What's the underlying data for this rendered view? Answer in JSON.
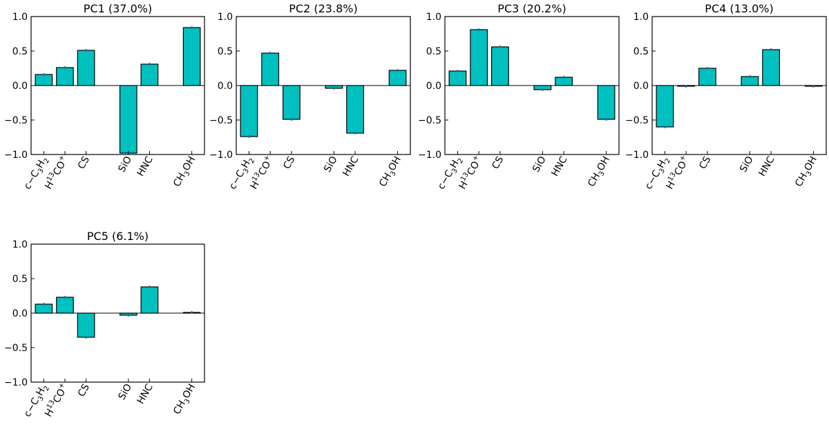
{
  "chart_data": [
    {
      "type": "bar",
      "title": "PC1 (37.0%)",
      "categories": [
        "c−C3H2",
        "H13CO+",
        "CS",
        "SiO",
        "HNC",
        "CH3OH"
      ],
      "x": [
        0,
        1,
        2,
        4,
        5,
        7
      ],
      "values": [
        0.16,
        0.26,
        0.51,
        -0.98,
        0.31,
        0.84
      ],
      "errors": [
        0.02,
        0.02,
        0.02,
        0.02,
        0.02,
        0.02
      ],
      "ylim": [
        -1.0,
        1.0
      ],
      "yticks": [
        "1.0",
        "0.5",
        "0.0",
        "−0.5",
        "−1.0"
      ]
    },
    {
      "type": "bar",
      "title": "PC2 (23.8%)",
      "categories": [
        "c−C3H2",
        "H13CO+",
        "CS",
        "SiO",
        "HNC",
        "CH3OH"
      ],
      "x": [
        0,
        1,
        2,
        4,
        5,
        7
      ],
      "values": [
        -0.74,
        0.47,
        -0.49,
        -0.04,
        -0.69,
        0.22
      ],
      "errors": [
        0.02,
        0.02,
        0.02,
        0.02,
        0.02,
        0.02
      ],
      "ylim": [
        -1.0,
        1.0
      ],
      "yticks": [
        "1.0",
        "0.5",
        "0.0",
        "−0.5",
        "−1.0"
      ]
    },
    {
      "type": "bar",
      "title": "PC3 (20.2%)",
      "categories": [
        "c−C3H2",
        "H13CO+",
        "CS",
        "SiO",
        "HNC",
        "CH3OH"
      ],
      "x": [
        0,
        1,
        2,
        4,
        5,
        7
      ],
      "values": [
        0.21,
        0.81,
        0.56,
        -0.06,
        0.12,
        -0.49
      ],
      "errors": [
        0.02,
        0.02,
        0.02,
        0.02,
        0.02,
        0.02
      ],
      "ylim": [
        -1.0,
        1.0
      ],
      "yticks": [
        "1.0",
        "0.5",
        "0.0",
        "−0.5",
        "−1.0"
      ]
    },
    {
      "type": "bar",
      "title": "PC4 (13.0%)",
      "categories": [
        "c−C3H2",
        "H13CO+",
        "CS",
        "SiO",
        "HNC",
        "CH3OH"
      ],
      "x": [
        0,
        1,
        2,
        4,
        5,
        7
      ],
      "values": [
        -0.6,
        -0.01,
        0.25,
        0.13,
        0.52,
        -0.01
      ],
      "errors": [
        0.02,
        0.02,
        0.02,
        0.02,
        0.02,
        0.02
      ],
      "ylim": [
        -1.0,
        1.0
      ],
      "yticks": [
        "1.0",
        "0.5",
        "0.0",
        "−0.5",
        "−1.0"
      ]
    },
    {
      "type": "bar",
      "title": "PC5 (6.1%)",
      "categories": [
        "c−C3H2",
        "H13CO+",
        "CS",
        "SiO",
        "HNC",
        "CH3OH"
      ],
      "x": [
        0,
        1,
        2,
        4,
        5,
        7
      ],
      "values": [
        0.13,
        0.23,
        -0.35,
        -0.03,
        0.38,
        0.01
      ],
      "errors": [
        0.02,
        0.02,
        0.02,
        0.02,
        0.02,
        0.02
      ],
      "ylim": [
        -1.0,
        1.0
      ],
      "yticks": [
        "1.0",
        "0.5",
        "0.0",
        "−0.5",
        "−1.0"
      ]
    }
  ],
  "colors": {
    "bar_fill": "#00c0c0",
    "bar_edge": "#000000",
    "error_bar": "#1f77b4"
  }
}
